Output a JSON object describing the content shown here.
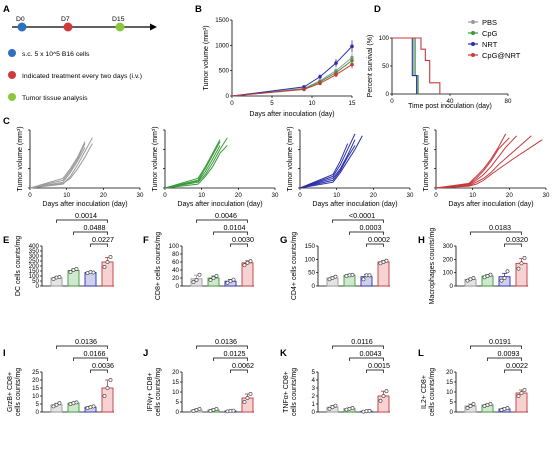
{
  "colors": {
    "PBS": "#9a9a9a",
    "CpG": "#3a9a3a",
    "NRT": "#2b2fa8",
    "CpG@NRT": "#c8383c"
  },
  "panelA": {
    "label": "A",
    "days": [
      "D0",
      "D7",
      "D15"
    ],
    "legend": [
      {
        "color": "#2f6fc0",
        "text": "s.c. 5 x 10^5 B16 cells"
      },
      {
        "color": "#d23a3a",
        "text": "Indicated treatment every two days (i.v.)"
      },
      {
        "color": "#8cc63f",
        "text": "Tumor tissue analysis"
      }
    ]
  },
  "chart_data": [
    {
      "id": "B",
      "type": "line",
      "label": "B",
      "xlabel": "Days after inoculation (day)",
      "ylabel": "Tumor volume (mm³)",
      "xlim": [
        0,
        15
      ],
      "ylim": [
        0,
        1500
      ],
      "xticks": [
        0,
        5,
        10,
        15
      ],
      "yticks": [
        0,
        500,
        1000,
        1500
      ],
      "series": [
        {
          "name": "PBS",
          "x": [
            0,
            9,
            11,
            13,
            15
          ],
          "y": [
            0,
            150,
            300,
            500,
            760
          ]
        },
        {
          "name": "CpG",
          "x": [
            0,
            9,
            11,
            13,
            15
          ],
          "y": [
            0,
            140,
            280,
            460,
            700
          ]
        },
        {
          "name": "NRT",
          "x": [
            0,
            9,
            11,
            13,
            15
          ],
          "y": [
            0,
            180,
            380,
            650,
            980
          ]
        },
        {
          "name": "CpG@NRT",
          "x": [
            0,
            9,
            11,
            13,
            15
          ],
          "y": [
            0,
            130,
            250,
            420,
            620
          ]
        }
      ]
    },
    {
      "id": "D",
      "type": "line",
      "label": "D",
      "xlabel": "Time post inoculation (day)",
      "ylabel": "Percent survival (%)",
      "xlim": [
        0,
        80
      ],
      "ylim": [
        0,
        100
      ],
      "xticks": [
        0,
        40,
        80
      ],
      "yticks": [
        0,
        50,
        100
      ],
      "legend": [
        "PBS",
        "CpG",
        "NRT",
        "CpG@NRT"
      ],
      "series": [
        {
          "name": "PBS",
          "x": [
            0,
            15,
            15,
            17,
            17
          ],
          "y": [
            100,
            100,
            33,
            33,
            0
          ]
        },
        {
          "name": "CpG",
          "x": [
            0,
            16,
            16,
            18,
            18
          ],
          "y": [
            100,
            100,
            33,
            33,
            0
          ]
        },
        {
          "name": "NRT",
          "x": [
            0,
            14,
            14,
            17,
            17
          ],
          "y": [
            100,
            100,
            33,
            33,
            0
          ]
        },
        {
          "name": "CpG@NRT",
          "x": [
            0,
            20,
            20,
            23,
            23,
            26,
            26,
            33,
            33
          ],
          "y": [
            100,
            100,
            80,
            80,
            60,
            60,
            20,
            20,
            0
          ]
        }
      ]
    },
    {
      "id": "C1",
      "type": "line",
      "label": "C",
      "group": "PBS",
      "xlabel": "Days after inoculation (day)",
      "ylabel": "Tumor volume (mm³)",
      "xlim": [
        0,
        30
      ],
      "ylim": [
        0,
        1500
      ],
      "xticks": [
        0,
        10,
        20,
        30
      ],
      "yticks": [
        0,
        500,
        1000,
        1500
      ],
      "series": [
        {
          "x": [
            0,
            9,
            11,
            13,
            15
          ],
          "y": [
            0,
            200,
            450,
            750,
            1150
          ]
        },
        {
          "x": [
            0,
            9,
            11,
            13,
            15
          ],
          "y": [
            0,
            150,
            400,
            700,
            1050
          ]
        },
        {
          "x": [
            0,
            9,
            11,
            13,
            15,
            17
          ],
          "y": [
            0,
            100,
            300,
            600,
            950,
            1300
          ]
        },
        {
          "x": [
            0,
            9,
            11,
            13,
            15
          ],
          "y": [
            0,
            250,
            500,
            800,
            1200
          ]
        },
        {
          "x": [
            0,
            9,
            11,
            13,
            15,
            17
          ],
          "y": [
            0,
            120,
            250,
            500,
            800,
            1150
          ]
        }
      ]
    },
    {
      "id": "C2",
      "type": "line",
      "group": "CpG",
      "xlabel": "Days after inoculation (day)",
      "ylabel": "Tumor volume (mm³)",
      "xlim": [
        0,
        30
      ],
      "ylim": [
        0,
        1500
      ],
      "xticks": [
        0,
        10,
        20,
        30
      ],
      "yticks": [
        0,
        500,
        1000,
        1500
      ],
      "series": [
        {
          "x": [
            0,
            9,
            11,
            13,
            15
          ],
          "y": [
            0,
            200,
            500,
            850,
            1200
          ]
        },
        {
          "x": [
            0,
            9,
            11,
            13,
            15,
            17
          ],
          "y": [
            0,
            150,
            350,
            650,
            1000,
            1300
          ]
        },
        {
          "x": [
            0,
            9,
            11,
            13,
            15
          ],
          "y": [
            0,
            250,
            550,
            900,
            1250
          ]
        },
        {
          "x": [
            0,
            9,
            11,
            13,
            15,
            17
          ],
          "y": [
            0,
            100,
            300,
            550,
            900,
            1100
          ]
        },
        {
          "x": [
            0,
            9,
            11,
            13,
            15
          ],
          "y": [
            0,
            180,
            420,
            750,
            1100
          ]
        }
      ]
    },
    {
      "id": "C3",
      "type": "line",
      "group": "NRT",
      "xlabel": "Days after inoculation (day)",
      "ylabel": "Tumor volume (mm³)",
      "xlim": [
        0,
        30
      ],
      "ylim": [
        0,
        1500
      ],
      "xticks": [
        0,
        10,
        20,
        30
      ],
      "yticks": [
        0,
        500,
        1000,
        1500
      ],
      "series": [
        {
          "x": [
            0,
            9,
            11,
            13,
            15
          ],
          "y": [
            0,
            300,
            600,
            1000,
            1400
          ]
        },
        {
          "x": [
            0,
            9,
            11,
            13,
            15
          ],
          "y": [
            0,
            250,
            500,
            850,
            1250
          ]
        },
        {
          "x": [
            0,
            9,
            11,
            13,
            15,
            17
          ],
          "y": [
            0,
            150,
            400,
            700,
            1000,
            1350
          ]
        },
        {
          "x": [
            0,
            9,
            11,
            13
          ],
          "y": [
            0,
            350,
            700,
            1150
          ]
        },
        {
          "x": [
            0,
            9,
            11,
            13,
            15
          ],
          "y": [
            0,
            200,
            450,
            800,
            1100
          ]
        }
      ]
    },
    {
      "id": "C4",
      "type": "line",
      "group": "CpG@NRT",
      "xlabel": "Days after inoculation (day)",
      "ylabel": "Tumor volume (mm³)",
      "xlim": [
        0,
        30
      ],
      "ylim": [
        0,
        1500
      ],
      "xticks": [
        0,
        10,
        20,
        30
      ],
      "yticks": [
        0,
        500,
        1000,
        1500
      ],
      "series": [
        {
          "x": [
            0,
            9,
            11,
            13,
            15,
            17,
            20
          ],
          "y": [
            0,
            100,
            250,
            450,
            700,
            1000,
            1300
          ]
        },
        {
          "x": [
            0,
            9,
            11,
            13,
            15,
            17,
            19,
            22
          ],
          "y": [
            0,
            80,
            200,
            350,
            550,
            800,
            1050,
            1350
          ]
        },
        {
          "x": [
            0,
            9,
            11,
            13,
            15,
            17,
            20,
            23,
            26
          ],
          "y": [
            0,
            60,
            150,
            250,
            400,
            600,
            850,
            1100,
            1350
          ]
        },
        {
          "x": [
            0,
            9,
            11,
            13,
            15,
            18,
            21,
            25,
            29
          ],
          "y": [
            0,
            50,
            100,
            200,
            350,
            550,
            750,
            1000,
            1250
          ]
        },
        {
          "x": [
            0,
            9,
            11,
            13,
            15,
            17,
            19
          ],
          "y": [
            0,
            120,
            300,
            500,
            750,
            1050,
            1400
          ]
        }
      ]
    },
    {
      "id": "E",
      "type": "bar",
      "label": "E",
      "ylabel": "DC cells counts/mg",
      "categories": [
        "PBS",
        "CpG",
        "NRT",
        "CpG@NRT"
      ],
      "ylim": [
        0,
        400
      ],
      "yticks": [
        0,
        50,
        100,
        150,
        200,
        250,
        300,
        350,
        400
      ],
      "values": [
        80,
        155,
        135,
        240
      ],
      "points": [
        [
          70,
          85,
          90
        ],
        [
          140,
          160,
          170
        ],
        [
          130,
          140,
          135
        ],
        [
          190,
          240,
          290
        ]
      ],
      "errors": [
        10,
        15,
        5,
        45
      ],
      "pvalues": [
        {
          "from": 0,
          "to": 3,
          "text": "0.0014"
        },
        {
          "from": 1,
          "to": 3,
          "text": "0.0488"
        },
        {
          "from": 2,
          "to": 3,
          "text": "0.0227"
        }
      ]
    },
    {
      "id": "F",
      "type": "bar",
      "label": "F",
      "ylabel": "CD8+ cells counts/mg",
      "categories": [
        "PBS",
        "CpG",
        "NRT",
        "CpG@NRT"
      ],
      "ylim": [
        0,
        100
      ],
      "yticks": [
        0,
        20,
        40,
        60,
        80,
        100
      ],
      "values": [
        18,
        20,
        12,
        58
      ],
      "points": [
        [
          10,
          15,
          28
        ],
        [
          15,
          20,
          25
        ],
        [
          8,
          12,
          16
        ],
        [
          52,
          58,
          62
        ]
      ],
      "errors": [
        9,
        5,
        4,
        5
      ],
      "pvalues": [
        {
          "from": 0,
          "to": 3,
          "text": "0.0046"
        },
        {
          "from": 1,
          "to": 3,
          "text": "0.0104"
        },
        {
          "from": 2,
          "to": 3,
          "text": "0.0030"
        }
      ]
    },
    {
      "id": "G",
      "type": "bar",
      "label": "G",
      "ylabel": "CD4+ cells counts/mg",
      "categories": [
        "PBS",
        "CpG",
        "NRT",
        "CpG@NRT"
      ],
      "ylim": [
        0,
        150
      ],
      "yticks": [
        0,
        50,
        100,
        150
      ],
      "values": [
        30,
        40,
        35,
        90
      ],
      "points": [
        [
          25,
          30,
          35
        ],
        [
          38,
          40,
          42
        ],
        [
          25,
          40,
          40
        ],
        [
          85,
          90,
          95
        ]
      ],
      "errors": [
        5,
        3,
        8,
        5
      ],
      "pvalues": [
        {
          "from": 0,
          "to": 3,
          "text": "<0.0001"
        },
        {
          "from": 1,
          "to": 3,
          "text": "0.0003"
        },
        {
          "from": 2,
          "to": 3,
          "text": "0.0002"
        }
      ]
    },
    {
      "id": "H",
      "type": "bar",
      "label": "H",
      "ylabel": "Macrophages counts/mg",
      "categories": [
        "PBS",
        "CpG",
        "NRT",
        "CpG@NRT"
      ],
      "ylim": [
        0,
        300
      ],
      "yticks": [
        0,
        100,
        200,
        300
      ],
      "values": [
        50,
        75,
        70,
        170
      ],
      "points": [
        [
          40,
          50,
          60
        ],
        [
          65,
          75,
          85
        ],
        [
          40,
          60,
          110
        ],
        [
          130,
          170,
          210
        ]
      ],
      "errors": [
        10,
        10,
        25,
        35
      ],
      "pvalues": [
        {
          "from": 0,
          "to": 3,
          "text": "0.0183"
        },
        {
          "from": 2,
          "to": 3,
          "text": "0.0320"
        }
      ]
    },
    {
      "id": "I",
      "type": "bar",
      "label": "I",
      "ylabel": "GrzB+ CD8+ cells counts/mg",
      "categories": [
        "PBS",
        "CpG",
        "NRT",
        "CpG@NRT"
      ],
      "ylim": [
        0,
        25
      ],
      "yticks": [
        0,
        5,
        10,
        15,
        20,
        25
      ],
      "values": [
        4.5,
        5.5,
        3,
        15
      ],
      "points": [
        [
          3.5,
          4.5,
          5.5
        ],
        [
          5,
          5.5,
          6
        ],
        [
          2.5,
          3,
          3.5
        ],
        [
          10,
          15,
          20
        ]
      ],
      "errors": [
        1,
        0.5,
        0.5,
        5
      ],
      "pvalues": [
        {
          "from": 0,
          "to": 3,
          "text": "0.0136"
        },
        {
          "from": 1,
          "to": 3,
          "text": "0.0166"
        },
        {
          "from": 2,
          "to": 3,
          "text": "0.0036"
        }
      ]
    },
    {
      "id": "J",
      "type": "bar",
      "label": "J",
      "ylabel": "IFNγ+ CD8+ cells counts/mg",
      "categories": [
        "PBS",
        "CpG",
        "NRT",
        "CpG@NRT"
      ],
      "ylim": [
        0,
        20
      ],
      "yticks": [
        0,
        5,
        10,
        15,
        20
      ],
      "values": [
        1,
        1,
        0.5,
        7
      ],
      "points": [
        [
          0.5,
          1,
          1.5
        ],
        [
          0.5,
          1,
          1.5
        ],
        [
          0.3,
          0.5,
          0.7
        ],
        [
          5,
          7,
          9
        ]
      ],
      "errors": [
        0.5,
        0.5,
        0.2,
        2
      ],
      "pvalues": [
        {
          "from": 0,
          "to": 3,
          "text": "0.0136"
        },
        {
          "from": 1,
          "to": 3,
          "text": "0.0125"
        },
        {
          "from": 2,
          "to": 3,
          "text": "0.0062"
        }
      ]
    },
    {
      "id": "K",
      "type": "bar",
      "label": "K",
      "ylabel": "TNFα+ CD8+ cells counts/mg",
      "categories": [
        "PBS",
        "CpG",
        "NRT",
        "CpG@NRT"
      ],
      "ylim": [
        0,
        5
      ],
      "yticks": [
        0,
        1,
        2,
        3,
        4,
        5
      ],
      "values": [
        0.6,
        0.4,
        0.1,
        2
      ],
      "points": [
        [
          0.4,
          0.6,
          0.8
        ],
        [
          0.3,
          0.4,
          0.5
        ],
        [
          0.05,
          0.1,
          0.15
        ],
        [
          1.4,
          2,
          2.6
        ]
      ],
      "errors": [
        0.2,
        0.1,
        0.05,
        0.6
      ],
      "pvalues": [
        {
          "from": 0,
          "to": 3,
          "text": "0.0116"
        },
        {
          "from": 1,
          "to": 3,
          "text": "0.0043"
        },
        {
          "from": 2,
          "to": 3,
          "text": "0.0015"
        }
      ]
    },
    {
      "id": "L",
      "type": "bar",
      "label": "L",
      "ylabel": "IL2+ CD8+ cells counts/mg",
      "categories": [
        "PBS",
        "CpG",
        "NRT",
        "CpG@NRT"
      ],
      "ylim": [
        0,
        20
      ],
      "yticks": [
        0,
        5,
        10,
        15,
        20
      ],
      "values": [
        3,
        3.5,
        1.5,
        9.5
      ],
      "points": [
        [
          2,
          3,
          4
        ],
        [
          3,
          3.5,
          4
        ],
        [
          1,
          1.5,
          2
        ],
        [
          8,
          9.5,
          11
        ]
      ],
      "errors": [
        1,
        0.5,
        0.5,
        1.5
      ],
      "pvalues": [
        {
          "from": 0,
          "to": 3,
          "text": "0.0191"
        },
        {
          "from": 1,
          "to": 3,
          "text": "0.0093"
        },
        {
          "from": 2,
          "to": 3,
          "text": "0.0022"
        }
      ]
    }
  ]
}
